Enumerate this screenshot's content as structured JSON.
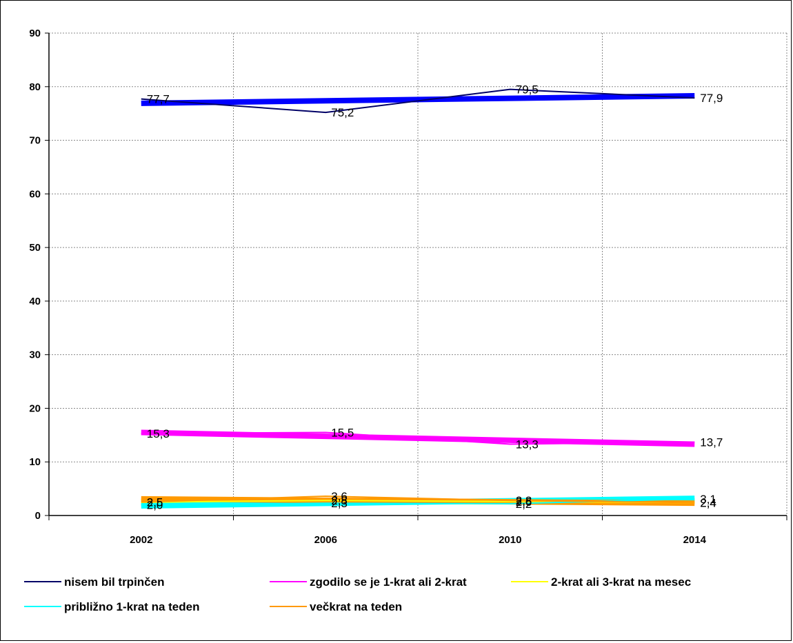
{
  "chart_data": {
    "type": "line",
    "categories": [
      "2002",
      "2006",
      "2010",
      "2014"
    ],
    "ylim": [
      0,
      90
    ],
    "yticks": [
      0,
      10,
      20,
      30,
      40,
      50,
      60,
      70,
      80,
      90
    ],
    "grid": true,
    "legend_position": "bottom",
    "title": "",
    "xlabel": "",
    "ylabel": "",
    "series": [
      {
        "name": "nisem bil trpinčen",
        "color": "#000066",
        "values": [
          77.7,
          75.2,
          79.5,
          77.9
        ],
        "labels": [
          "77,7",
          "75,2",
          "79,5",
          "77,9"
        ]
      },
      {
        "name": "zgodilo se je 1-krat ali 2-krat",
        "color": "#ff00ff",
        "values": [
          15.3,
          15.5,
          13.3,
          13.7
        ],
        "labels": [
          "15,3",
          "15,5",
          "13,3",
          "13,7"
        ]
      },
      {
        "name": "2-krat ali 3-krat na mesec",
        "color": "#ffff00",
        "values": [
          2.5,
          2.8,
          2.6,
          2.4
        ],
        "labels": [
          "2,5",
          "2,8",
          "2,6",
          "2,4"
        ]
      },
      {
        "name": "približno 1-krat na teden",
        "color": "#00ffff",
        "values": [
          2.0,
          2.3,
          2.2,
          3.1
        ],
        "labels": [
          "2,0",
          "2,3",
          "2,2",
          "3,1"
        ]
      },
      {
        "name": "večkrat na teden",
        "color": "#ff9900",
        "values": [
          2.5,
          3.6,
          2.8,
          2.4
        ],
        "labels": [
          "2,5",
          "3,6",
          "2,8",
          "2,4"
        ]
      }
    ],
    "trendlines": [
      {
        "series": "nisem bil trpinčen",
        "color": "#0000ff",
        "from": 76.9,
        "to": 78.3
      },
      {
        "series": "zgodilo se je 1-krat ali 2-krat",
        "color": "#ff00ff",
        "from": 15.5,
        "to": 13.3
      },
      {
        "series": "2-krat ali 3-krat na mesec",
        "color": "#ffff00",
        "from": 2.6,
        "to": 2.6
      },
      {
        "series": "približno 1-krat na teden",
        "color": "#00ffff",
        "from": 1.8,
        "to": 3.2
      },
      {
        "series": "večkrat na teden",
        "color": "#ff9900",
        "from": 3.1,
        "to": 2.3
      }
    ]
  }
}
